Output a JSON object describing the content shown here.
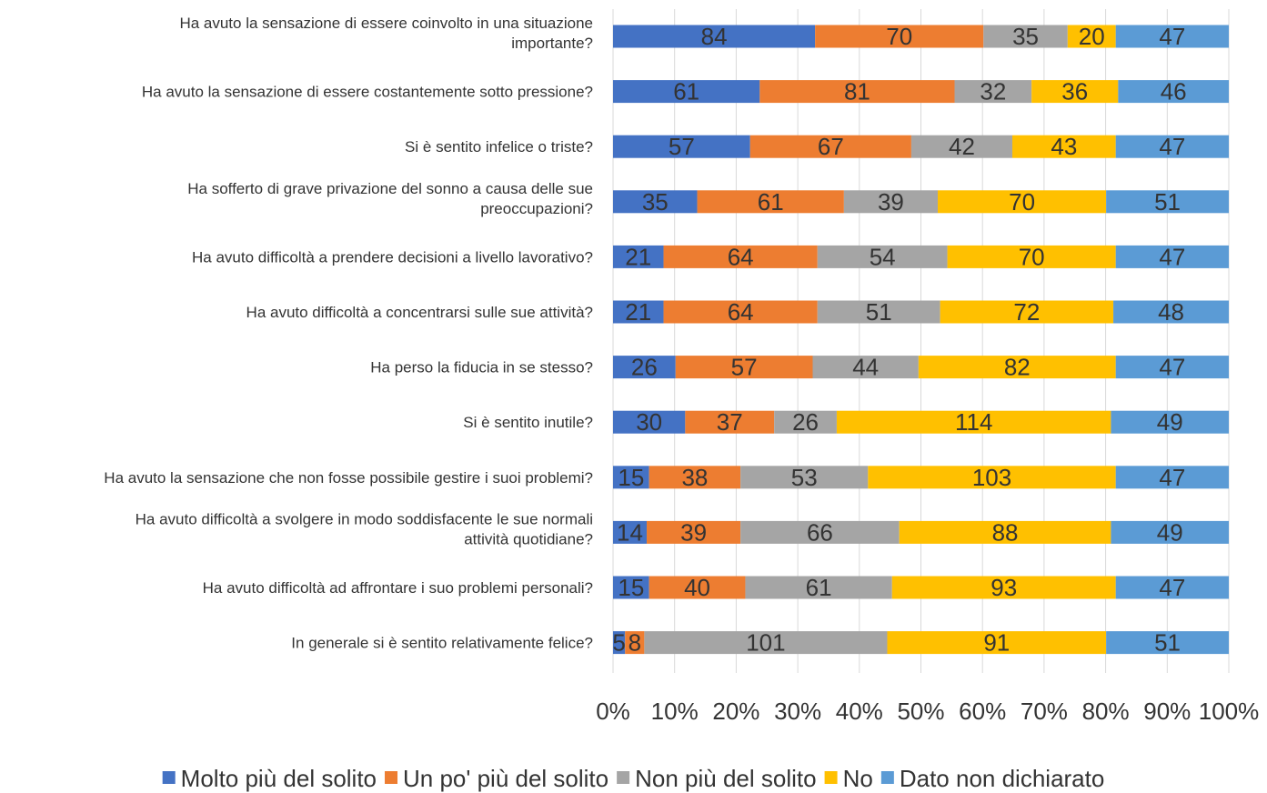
{
  "chart_data": {
    "type": "bar",
    "orientation": "horizontal",
    "stacked": "percent",
    "categories": [
      [
        "Ha avuto la sensazione di essere coinvolto in una situazione",
        "importante?"
      ],
      [
        "Ha avuto la sensazione di essere costantemente sotto pressione?"
      ],
      [
        "Si è sentito infelice o triste?"
      ],
      [
        "Ha sofferto di grave privazione del sonno a causa delle sue",
        "preoccupazioni?"
      ],
      [
        "Ha avuto difficoltà a prendere decisioni a livello lavorativo?"
      ],
      [
        "Ha avuto difficoltà a concentrarsi sulle sue attività?"
      ],
      [
        "Ha perso la fiducia in se stesso?"
      ],
      [
        "Si è sentito inutile?"
      ],
      [
        "Ha avuto la sensazione che non fosse possibile gestire i suoi problemi?"
      ],
      [
        "Ha avuto difficoltà a svolgere in modo soddisfacente le sue normali",
        "attività quotidiane?"
      ],
      [
        "Ha avuto difficoltà ad affrontare i suo problemi personali?"
      ],
      [
        "In generale si è sentito relativamente felice?"
      ]
    ],
    "series": [
      {
        "name": "Molto più del solito",
        "color": "#4472C4",
        "values": [
          84,
          61,
          57,
          35,
          21,
          21,
          26,
          30,
          15,
          14,
          15,
          5
        ]
      },
      {
        "name": "Un po' più del solito",
        "color": "#ED7D31",
        "values": [
          70,
          81,
          67,
          61,
          64,
          64,
          57,
          37,
          38,
          39,
          40,
          8
        ]
      },
      {
        "name": "Non più del solito",
        "color": "#A5A5A5",
        "values": [
          35,
          32,
          42,
          39,
          54,
          51,
          44,
          26,
          53,
          66,
          61,
          101
        ]
      },
      {
        "name": "No",
        "color": "#FFC000",
        "values": [
          20,
          36,
          43,
          70,
          70,
          72,
          82,
          114,
          103,
          88,
          93,
          91
        ]
      },
      {
        "name": "Dato non dichiarato",
        "color": "#5B9BD5",
        "values": [
          47,
          46,
          47,
          51,
          47,
          48,
          47,
          49,
          47,
          49,
          47,
          51
        ]
      }
    ],
    "x_ticks": [
      "0%",
      "10%",
      "20%",
      "30%",
      "40%",
      "50%",
      "60%",
      "70%",
      "80%",
      "90%",
      "100%"
    ],
    "xlim": [
      0,
      100
    ],
    "grid": true,
    "legend_position": "bottom"
  }
}
